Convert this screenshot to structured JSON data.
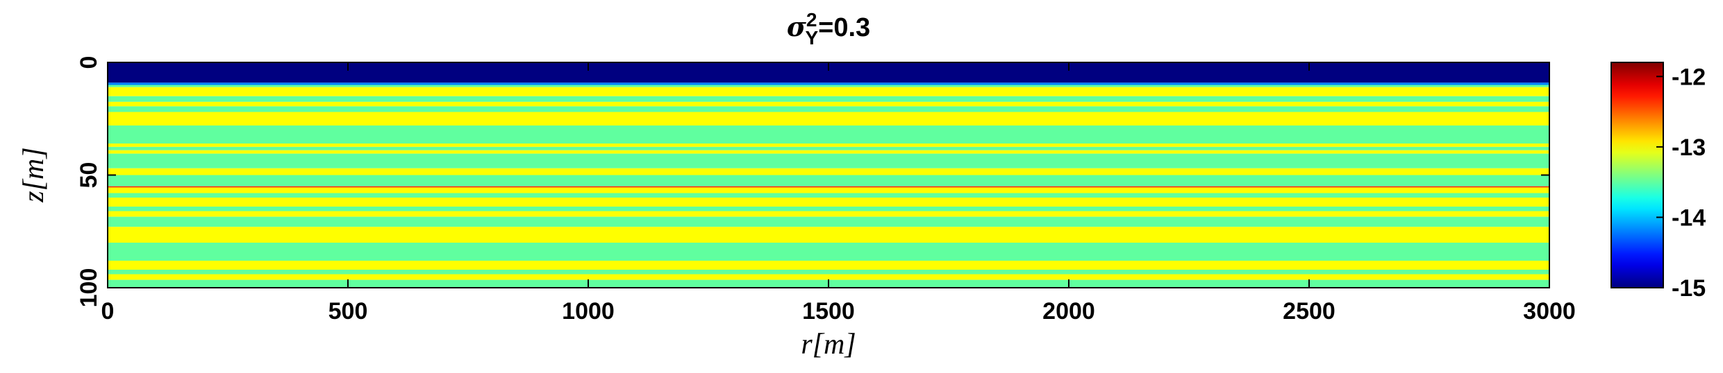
{
  "chart_data": {
    "type": "layers",
    "title": {
      "symbol": "σ",
      "superscript": "2",
      "subscript": "Y",
      "rest": "=0.3"
    },
    "x_label": "r[m]",
    "y_label": "z[m]",
    "xlim": [
      0,
      3000
    ],
    "xticks": [
      0,
      500,
      1000,
      1500,
      2000,
      2500,
      3000
    ],
    "ylim": [
      0,
      100
    ],
    "yticks": [
      0,
      50,
      100
    ],
    "y_reversed": true,
    "colormap": "jet",
    "clim": [
      -15,
      -11.8
    ],
    "cticks": [
      -15,
      -14,
      -13,
      -12
    ],
    "z_edges": [
      0,
      9,
      10,
      11,
      15,
      17.5,
      19.5,
      22,
      28,
      36,
      37.5,
      39,
      40.5,
      47,
      50,
      55,
      55.5,
      58,
      60,
      64,
      66,
      68.5,
      73,
      80,
      88,
      92,
      94,
      96.5,
      100
    ],
    "values": [
      -15,
      -14.2,
      -13.5,
      -13,
      -13.5,
      -13,
      -13.5,
      -13,
      -13.5,
      -13,
      -13.5,
      -13,
      -13.5,
      -13,
      -13.5,
      -12.3,
      -13,
      -13.5,
      -13,
      -13.5,
      -13,
      -13.5,
      -13,
      -13.5,
      -13,
      -13.5,
      -13,
      -13.5
    ]
  }
}
